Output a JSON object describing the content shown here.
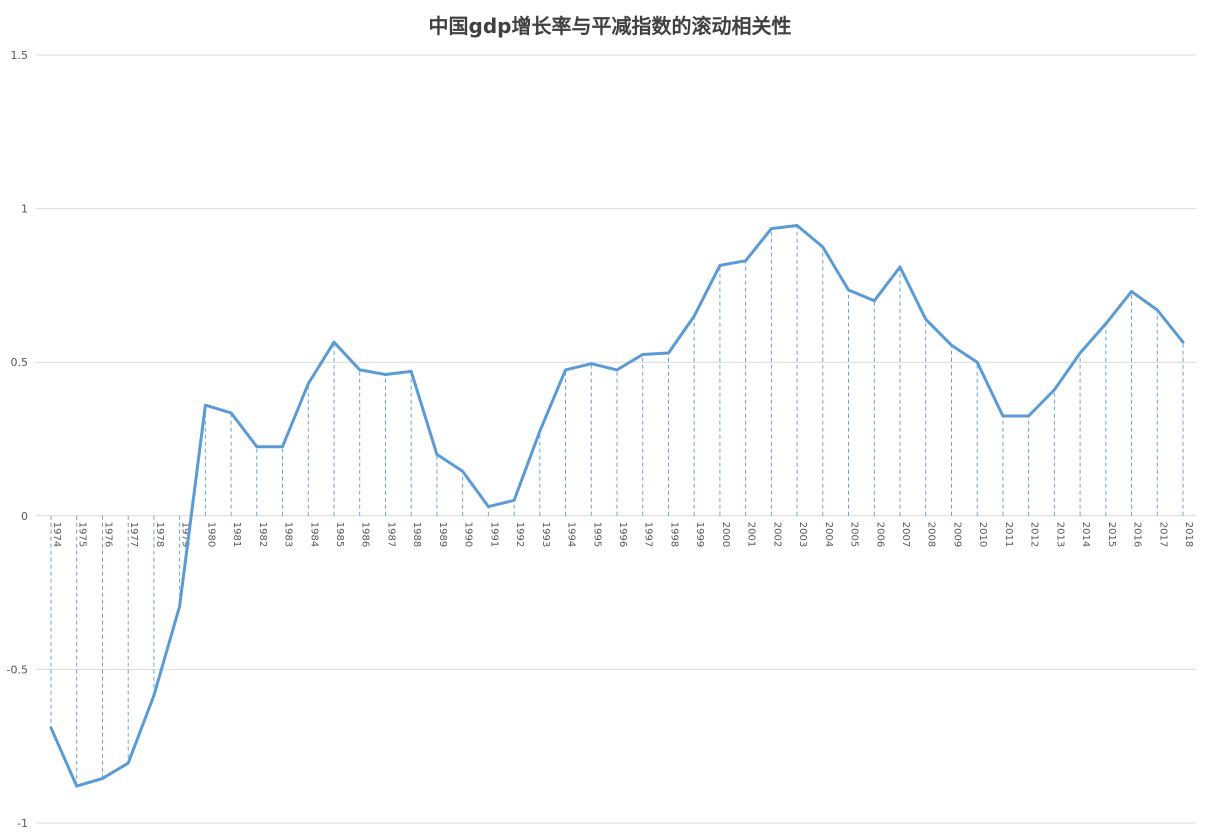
{
  "chart_data": {
    "type": "line",
    "title": "中国gdp增长率与平减指数的滚动相关性",
    "xlabel": "",
    "ylabel": "",
    "ylim": [
      -1,
      1.5
    ],
    "yticks": [
      "1.5",
      "1",
      "0.5",
      "0",
      "-0.5",
      "-1"
    ],
    "ytick_values": [
      1.5,
      1,
      0.5,
      0,
      -0.5,
      -1
    ],
    "categories": [
      "1974",
      "1975",
      "1976",
      "1977",
      "1978",
      "1979",
      "1980",
      "1981",
      "1982",
      "1983",
      "1984",
      "1985",
      "1986",
      "1987",
      "1988",
      "1989",
      "1990",
      "1991",
      "1992",
      "1993",
      "1994",
      "1995",
      "1996",
      "1997",
      "1998",
      "1999",
      "2000",
      "2001",
      "2002",
      "2003",
      "2004",
      "2005",
      "2006",
      "2007",
      "2008",
      "2009",
      "2010",
      "2011",
      "2012",
      "2013",
      "2014",
      "2015",
      "2016",
      "2017",
      "2018"
    ],
    "values": [
      -0.69,
      -0.88,
      -0.855,
      -0.805,
      -0.585,
      -0.295,
      0.36,
      0.335,
      0.225,
      0.225,
      0.43,
      0.565,
      0.475,
      0.46,
      0.47,
      0.2,
      0.145,
      0.03,
      0.05,
      0.275,
      0.475,
      0.495,
      0.475,
      0.525,
      0.53,
      0.65,
      0.815,
      0.83,
      0.935,
      0.945,
      0.875,
      0.735,
      0.7,
      0.81,
      0.64,
      0.555,
      0.5,
      0.325,
      0.325,
      0.41,
      0.53,
      0.625,
      0.73,
      0.67,
      0.565
    ],
    "grid": true,
    "legend": "none",
    "colors": {
      "line": "#5B9BD5",
      "grid": "#D9D9D9",
      "droplines": "#5B9BD5"
    }
  }
}
